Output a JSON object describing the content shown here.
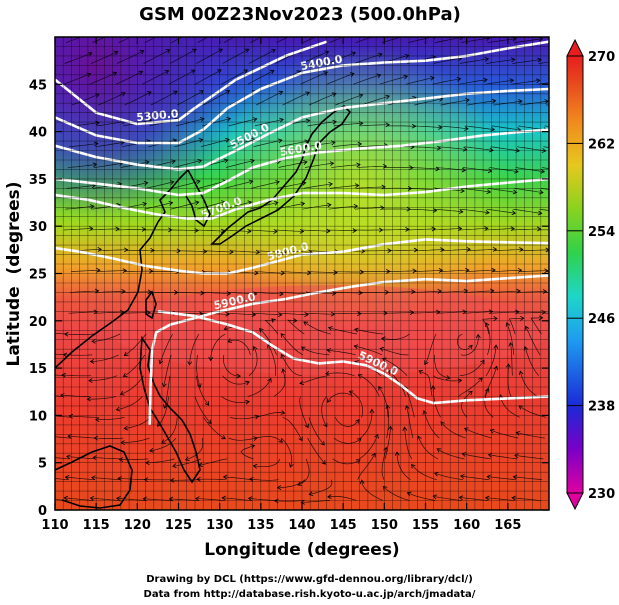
{
  "chart_data": {
    "type": "heatmap",
    "title": "GSM 00Z23Nov2023 (500.0hPa)",
    "xlabel": "Longitude (degrees)",
    "ylabel": "Latitude  (degrees)",
    "xlim": [
      110,
      170
    ],
    "ylim": [
      0,
      50
    ],
    "x_ticks": [
      110,
      115,
      120,
      125,
      130,
      135,
      140,
      145,
      150,
      155,
      160,
      165
    ],
    "y_ticks": [
      0,
      5,
      10,
      15,
      20,
      25,
      30,
      35,
      40,
      45
    ],
    "grid": true,
    "colorbar": {
      "label_values": [
        230,
        238,
        246,
        254,
        262,
        270
      ],
      "min": 230,
      "max": 270,
      "colors": [
        "#e000a0",
        "#7a00c8",
        "#1a2ad8",
        "#1e9cf0",
        "#1ed6c8",
        "#2fd24a",
        "#8ad21e",
        "#e6c81e",
        "#f08a1e",
        "#e8401e",
        "#e81e1e"
      ],
      "position": "right"
    },
    "contours": [
      {
        "label": "5300.0",
        "points": [
          [
            110,
            45.5
          ],
          [
            115,
            42
          ],
          [
            120,
            40.8
          ],
          [
            125,
            41.2
          ],
          [
            127,
            42.5
          ],
          [
            132,
            45.5
          ],
          [
            138,
            48
          ],
          [
            143,
            49.5
          ]
        ]
      },
      {
        "label": "5400.0",
        "points": [
          [
            110,
            41.5
          ],
          [
            115,
            39.6
          ],
          [
            120,
            38.8
          ],
          [
            125,
            38.8
          ],
          [
            128,
            40.2
          ],
          [
            131,
            42.5
          ],
          [
            135,
            44.5
          ],
          [
            140,
            46.2
          ],
          [
            145,
            47
          ],
          [
            150,
            47.3
          ],
          [
            155,
            47.5
          ],
          [
            160,
            48
          ],
          [
            165,
            48.8
          ],
          [
            170,
            49.5
          ]
        ]
      },
      {
        "label": "5500.0",
        "points": [
          [
            110,
            38.5
          ],
          [
            115,
            37.3
          ],
          [
            120,
            36.5
          ],
          [
            125,
            36
          ],
          [
            128,
            36.3
          ],
          [
            132,
            38
          ],
          [
            136,
            39.8
          ],
          [
            140,
            41.5
          ],
          [
            145,
            42.5
          ],
          [
            150,
            43
          ],
          [
            155,
            43.5
          ],
          [
            160,
            44
          ],
          [
            165,
            44.3
          ],
          [
            170,
            44.5
          ]
        ]
      },
      {
        "label": "5600.0",
        "points": [
          [
            110,
            35
          ],
          [
            115,
            34.5
          ],
          [
            120,
            34
          ],
          [
            125,
            33.3
          ],
          [
            128,
            33.5
          ],
          [
            131,
            34.8
          ],
          [
            134,
            36.2
          ],
          [
            138,
            37.2
          ],
          [
            142,
            37.8
          ],
          [
            147,
            38.2
          ],
          [
            152,
            38.5
          ],
          [
            157,
            39
          ],
          [
            162,
            39.6
          ],
          [
            167,
            40
          ],
          [
            170,
            40.2
          ]
        ]
      },
      {
        "label": "5700.0",
        "points": [
          [
            110,
            33.3
          ],
          [
            114,
            32.8
          ],
          [
            118,
            32
          ],
          [
            122,
            31.3
          ],
          [
            126,
            30.8
          ],
          [
            129,
            30.8
          ],
          [
            132,
            31.8
          ],
          [
            136,
            32.8
          ],
          [
            140,
            33.5
          ],
          [
            145,
            33.5
          ],
          [
            150,
            33.3
          ],
          [
            155,
            33.6
          ],
          [
            160,
            34.2
          ],
          [
            165,
            34.6
          ],
          [
            170,
            35
          ]
        ]
      },
      {
        "label": "5800.0",
        "points": [
          [
            110,
            27.7
          ],
          [
            113,
            27.3
          ],
          [
            117,
            26.6
          ],
          [
            121,
            25.8
          ],
          [
            125,
            25.3
          ],
          [
            128,
            25
          ],
          [
            131,
            25
          ],
          [
            134,
            25.6
          ],
          [
            137,
            26.3
          ],
          [
            140,
            27
          ],
          [
            145,
            27.3
          ],
          [
            150,
            28.1
          ],
          [
            155,
            28.6
          ],
          [
            160,
            28.4
          ],
          [
            165,
            28.3
          ],
          [
            170,
            28.2
          ]
        ]
      },
      {
        "label": "5900.0",
        "points": [
          [
            121.5,
            9
          ],
          [
            121.6,
            13
          ],
          [
            121.8,
            17
          ],
          [
            122.3,
            18.8
          ],
          [
            124,
            19.6
          ],
          [
            127,
            20.3
          ],
          [
            130,
            21
          ],
          [
            134,
            21.8
          ],
          [
            138,
            22.3
          ],
          [
            142,
            23
          ],
          [
            146,
            23.6
          ],
          [
            150,
            24.1
          ],
          [
            155,
            24.4
          ],
          [
            160,
            24.2
          ],
          [
            165,
            24.5
          ],
          [
            170,
            24.8
          ]
        ]
      },
      {
        "label": "5900.0",
        "points": [
          [
            122.5,
            21
          ],
          [
            127,
            20.5
          ],
          [
            131,
            19.6
          ],
          [
            134,
            18.8
          ],
          [
            136.5,
            17.3
          ],
          [
            139,
            16
          ],
          [
            142,
            15.5
          ],
          [
            145,
            15.7
          ],
          [
            147.8,
            15.3
          ],
          [
            150,
            14.4
          ],
          [
            152,
            13.2
          ],
          [
            154,
            11.8
          ],
          [
            156,
            11.3
          ],
          [
            160,
            11.6
          ],
          [
            165,
            11.8
          ],
          [
            170,
            12
          ]
        ]
      }
    ]
  }
}
